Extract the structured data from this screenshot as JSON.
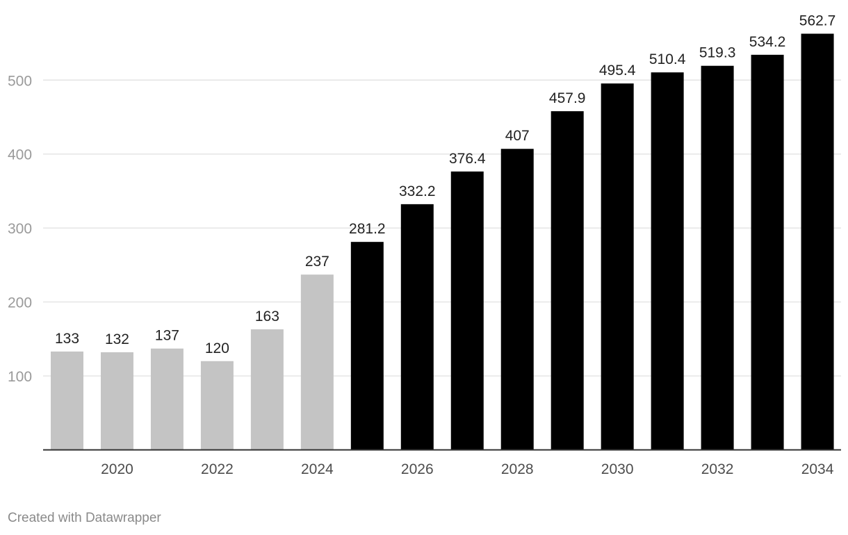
{
  "chart_data": {
    "type": "bar",
    "categories": [
      "2019",
      "2020",
      "2021",
      "2022",
      "2023",
      "2024",
      "2025",
      "2026",
      "2027",
      "2028",
      "2029",
      "2030",
      "2031",
      "2032",
      "2033",
      "2034"
    ],
    "values": [
      133,
      132,
      137,
      120,
      163,
      237,
      281.2,
      332.2,
      376.4,
      407,
      457.9,
      495.4,
      510.4,
      519.3,
      534.2,
      562.7
    ],
    "value_labels": [
      "133",
      "132",
      "137",
      "120",
      "163",
      "237",
      "281.2",
      "332.2",
      "376.4",
      "407",
      "457.9",
      "495.4",
      "510.4",
      "519.3",
      "534.2",
      "562.7"
    ],
    "x_tick_labels": [
      "2020",
      "2022",
      "2024",
      "2026",
      "2028",
      "2030",
      "2032",
      "2034"
    ],
    "y_ticks": [
      100,
      200,
      300,
      400,
      500
    ],
    "ylim": [
      0,
      562.7
    ],
    "grid": true,
    "title": "",
    "xlabel": "",
    "ylabel": "",
    "colors": {
      "historical": "#c4c4c4",
      "forecast": "#000000"
    },
    "forecast_start_category": "2025"
  },
  "credit": "Created with Datawrapper"
}
